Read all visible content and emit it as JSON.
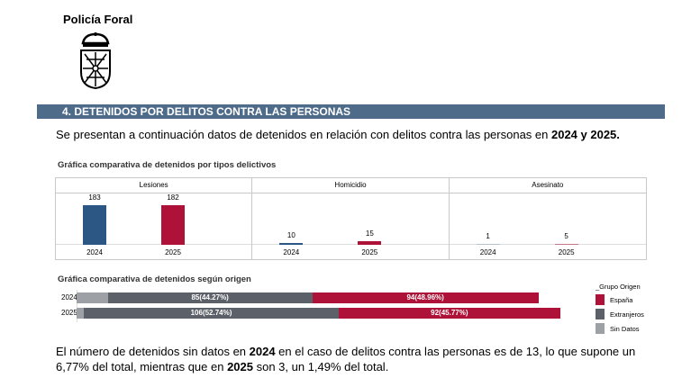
{
  "header": {
    "brand": "Policía Foral"
  },
  "section": {
    "title": "4. DETENIDOS POR DELITOS CONTRA LAS PERSONAS"
  },
  "intro": {
    "text_a": "Se presentan a continuación datos de detenidos en relación con delitos contra las personas en ",
    "bold": "2024 y 2025."
  },
  "colors": {
    "y2024": "#2c5784",
    "y2025": "#ae1238",
    "espana": "#ae1238",
    "extranjeros": "#5c6068",
    "sin_datos": "#9da0a5",
    "section_bar": "#4e6b89"
  },
  "chart_data": [
    {
      "type": "bar",
      "title": "Gráfica comparativa de detenidos por tipos delictivos",
      "panels": [
        {
          "label": "Lesiones",
          "values": [
            {
              "year": "2024",
              "value": 183,
              "display": "183"
            },
            {
              "year": "2025",
              "value": 182,
              "display": "182"
            }
          ]
        },
        {
          "label": "Homicidio",
          "values": [
            {
              "year": "2024",
              "value": 10,
              "display": "10"
            },
            {
              "year": "2025",
              "value": 15,
              "display": "15"
            }
          ]
        },
        {
          "label": "Asesinato",
          "values": [
            {
              "year": "2024",
              "value": 1,
              "display": "1"
            },
            {
              "year": "2025",
              "value": 5,
              "display": "5"
            }
          ]
        }
      ]
    },
    {
      "type": "bar",
      "orientation": "horizontal-stacked",
      "title": "Gráfica comparativa de detenidos según origen",
      "legend_title": "_Grupo Origen",
      "legend": [
        "España",
        "Extranjeros",
        "Sin Datos"
      ],
      "rows": [
        {
          "year": "2024",
          "sin_datos": 13,
          "extranjeros": 85,
          "espana": 94,
          "ext_label": "85(44.27%)",
          "esp_label": "94(48.96%)"
        },
        {
          "year": "2025",
          "sin_datos": 3,
          "extranjeros": 106,
          "espana": 92,
          "ext_label": "106(52.74%)",
          "esp_label": "92(45.77%)"
        }
      ]
    }
  ],
  "outro": {
    "p1": "El número de detenidos sin datos en ",
    "b1": "2024",
    "p2": " en el caso de delitos contra las personas es de 13, lo que supone un 6,77% del total, mientras que en ",
    "b2": "2025",
    "p3": " son 3, un 1,49% del total."
  }
}
